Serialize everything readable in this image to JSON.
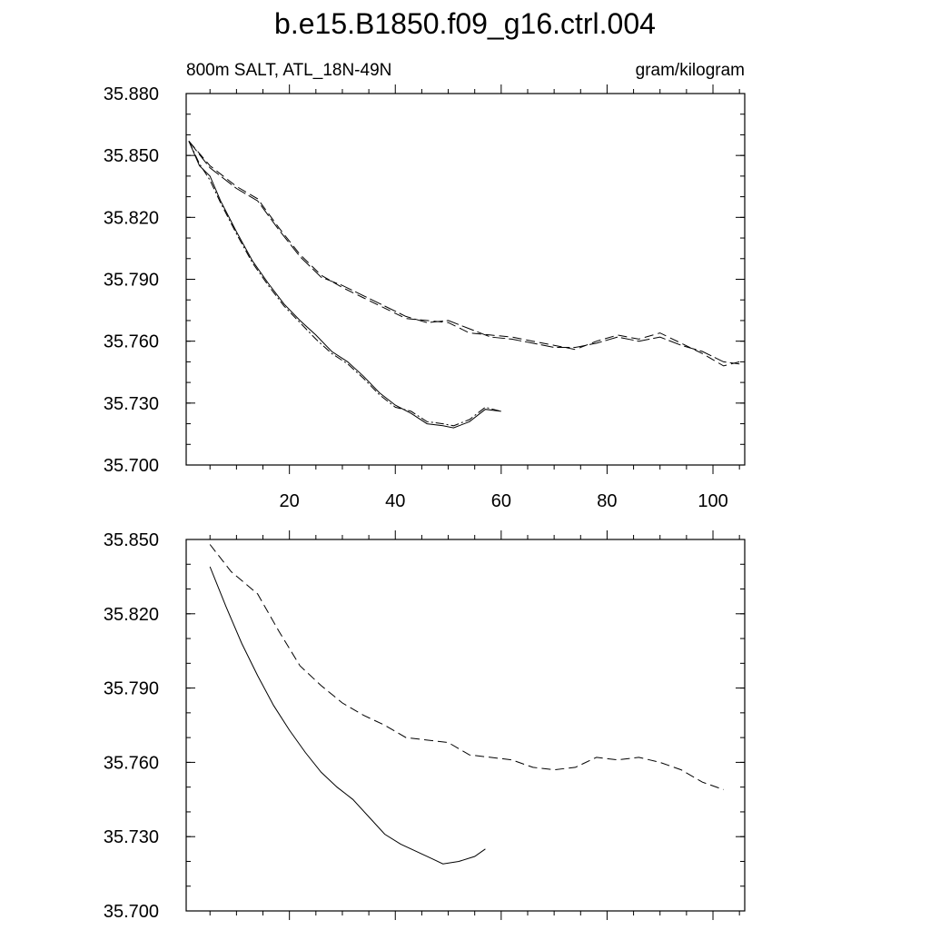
{
  "title": "b.e15.B1850.f09_g16.ctrl.004",
  "chart_data": [
    {
      "type": "line",
      "title": "b.e15.B1850.f09_g16.ctrl.004",
      "left_string": "800m SALT, ATL_18N-49N",
      "right_string": "gram/kilogram",
      "xlabel": "",
      "ylabel": "",
      "xlim": [
        0.5,
        106
      ],
      "ylim": [
        35.7,
        35.88
      ],
      "xticks": [
        20,
        40,
        60,
        80,
        100
      ],
      "xtick_labels": [
        "20",
        "40",
        "60",
        "80",
        "100"
      ],
      "yticks": [
        35.7,
        35.73,
        35.76,
        35.79,
        35.82,
        35.85,
        35.88
      ],
      "ytick_labels": [
        "35.700",
        "35.730",
        "35.760",
        "35.790",
        "35.820",
        "35.850",
        "35.880"
      ],
      "grid": false,
      "series": [
        {
          "style": "solid",
          "x": [
            1,
            3,
            5,
            7,
            10,
            13,
            16,
            19,
            22,
            25,
            28,
            31,
            34,
            37,
            40,
            43,
            46,
            49,
            51,
            54,
            57,
            60
          ],
          "y": [
            35.857,
            35.845,
            35.84,
            35.828,
            35.813,
            35.799,
            35.788,
            35.778,
            35.77,
            35.763,
            35.755,
            35.75,
            35.743,
            35.735,
            35.729,
            35.725,
            35.72,
            35.719,
            35.718,
            35.721,
            35.727,
            35.726
          ]
        },
        {
          "style": "dash-dot",
          "x": [
            1,
            3,
            5,
            7,
            10,
            13,
            16,
            19,
            22,
            25,
            28,
            31,
            34,
            37,
            40,
            43,
            46,
            49,
            51,
            54,
            57,
            60
          ],
          "y": [
            35.857,
            35.846,
            35.838,
            35.827,
            35.812,
            35.798,
            35.787,
            35.777,
            35.769,
            35.761,
            35.754,
            35.749,
            35.742,
            35.734,
            35.728,
            35.726,
            35.721,
            35.72,
            35.719,
            35.722,
            35.728,
            35.726
          ]
        },
        {
          "style": "dashed",
          "x": [
            1,
            5,
            10,
            14,
            18,
            22,
            26,
            30,
            34,
            38,
            42,
            46,
            50,
            54,
            58,
            62,
            66,
            70,
            74,
            78,
            82,
            86,
            90,
            94,
            98,
            102,
            105
          ],
          "y": [
            35.857,
            35.845,
            35.835,
            35.829,
            35.815,
            35.802,
            35.792,
            35.786,
            35.781,
            35.776,
            35.771,
            35.77,
            35.769,
            35.764,
            35.763,
            35.762,
            35.76,
            35.758,
            35.756,
            35.76,
            35.763,
            35.761,
            35.764,
            35.759,
            35.754,
            35.748,
            35.75
          ]
        },
        {
          "style": "long-dash",
          "x": [
            1,
            5,
            10,
            14,
            18,
            22,
            26,
            30,
            34,
            38,
            42,
            46,
            50,
            54,
            58,
            62,
            66,
            70,
            74,
            78,
            82,
            86,
            90,
            94,
            98,
            102,
            105
          ],
          "y": [
            35.857,
            35.844,
            35.834,
            35.828,
            35.814,
            35.801,
            35.791,
            35.787,
            35.782,
            35.777,
            35.772,
            35.769,
            35.77,
            35.766,
            35.762,
            35.761,
            35.759,
            35.757,
            35.757,
            35.759,
            35.762,
            35.76,
            35.762,
            35.758,
            35.755,
            35.75,
            35.749
          ]
        }
      ]
    },
    {
      "type": "line",
      "xlim": [
        0.5,
        106
      ],
      "ylim": [
        35.7,
        35.85
      ],
      "xticks": [
        20,
        40,
        60,
        80,
        100
      ],
      "xtick_labels": [],
      "yticks": [
        35.7,
        35.73,
        35.76,
        35.79,
        35.82,
        35.85
      ],
      "ytick_labels": [
        "35.700",
        "35.730",
        "35.760",
        "35.790",
        "35.820",
        "35.850"
      ],
      "grid": false,
      "series": [
        {
          "style": "solid",
          "x": [
            5,
            8,
            11,
            14,
            17,
            20,
            23,
            26,
            29,
            32,
            35,
            38,
            41,
            44,
            47,
            49,
            52,
            55,
            57
          ],
          "y": [
            35.839,
            35.823,
            35.808,
            35.795,
            35.783,
            35.773,
            35.764,
            35.756,
            35.75,
            35.745,
            35.738,
            35.731,
            35.727,
            35.724,
            35.721,
            35.719,
            35.72,
            35.722,
            35.725
          ]
        },
        {
          "style": "dashed",
          "x": [
            5,
            9,
            14,
            18,
            22,
            26,
            30,
            34,
            38,
            42,
            46,
            50,
            54,
            58,
            62,
            66,
            70,
            74,
            78,
            82,
            86,
            90,
            94,
            98,
            102
          ],
          "y": [
            35.848,
            35.837,
            35.828,
            35.813,
            35.799,
            35.791,
            35.784,
            35.779,
            35.775,
            35.77,
            35.769,
            35.768,
            35.763,
            35.762,
            35.761,
            35.758,
            35.757,
            35.758,
            35.762,
            35.761,
            35.762,
            35.76,
            35.757,
            35.752,
            35.749
          ]
        }
      ]
    }
  ]
}
